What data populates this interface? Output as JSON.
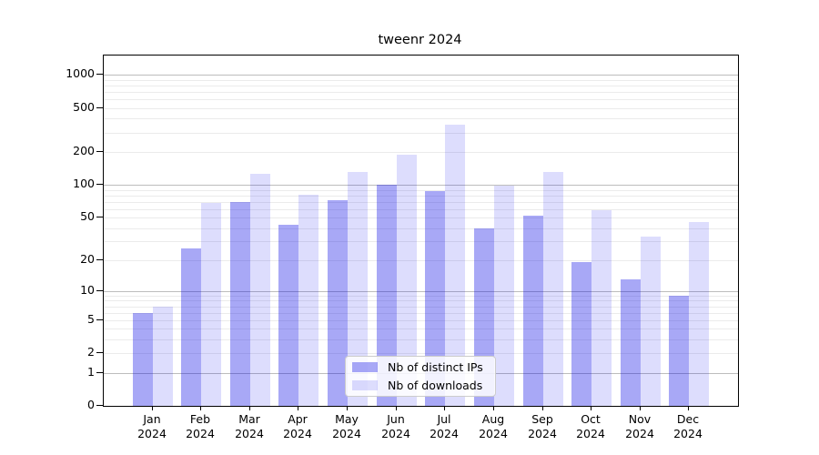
{
  "chart_data": {
    "type": "bar",
    "title": "tweenr 2024",
    "categories": [
      {
        "month": "Jan",
        "year": "2024"
      },
      {
        "month": "Feb",
        "year": "2024"
      },
      {
        "month": "Mar",
        "year": "2024"
      },
      {
        "month": "Apr",
        "year": "2024"
      },
      {
        "month": "May",
        "year": "2024"
      },
      {
        "month": "Jun",
        "year": "2024"
      },
      {
        "month": "Jul",
        "year": "2024"
      },
      {
        "month": "Aug",
        "year": "2024"
      },
      {
        "month": "Sep",
        "year": "2024"
      },
      {
        "month": "Oct",
        "year": "2024"
      },
      {
        "month": "Nov",
        "year": "2024"
      },
      {
        "month": "Dec",
        "year": "2024"
      }
    ],
    "series": [
      {
        "name": "Nb of distinct IPs",
        "color": "#a8a8f6",
        "fill": "rgba(0,0,230,0.34)",
        "values": [
          6,
          26,
          70,
          43,
          72,
          100,
          88,
          40,
          52,
          19,
          13,
          9
        ]
      },
      {
        "name": "Nb of downloads",
        "color": "#dcdcf9",
        "fill": "rgba(0,0,240,0.135)",
        "values": [
          7,
          68,
          125,
          81,
          130,
          190,
          350,
          98,
          131,
          58,
          33,
          45
        ]
      }
    ],
    "yscale": "log1p",
    "ylim": [
      0,
      1500
    ],
    "yticks_labeled": [
      0,
      1,
      2,
      5,
      10,
      20,
      50,
      100,
      200,
      500,
      1000
    ],
    "yticks_major_grid": [
      1,
      10,
      100,
      1000
    ],
    "grid": true,
    "legend_position": "inside-bottom-center",
    "colors": {
      "major_grid": "#bdbdbd",
      "minor_grid": "#ebebeb",
      "axis": "#000000",
      "background": "#ffffff"
    }
  }
}
